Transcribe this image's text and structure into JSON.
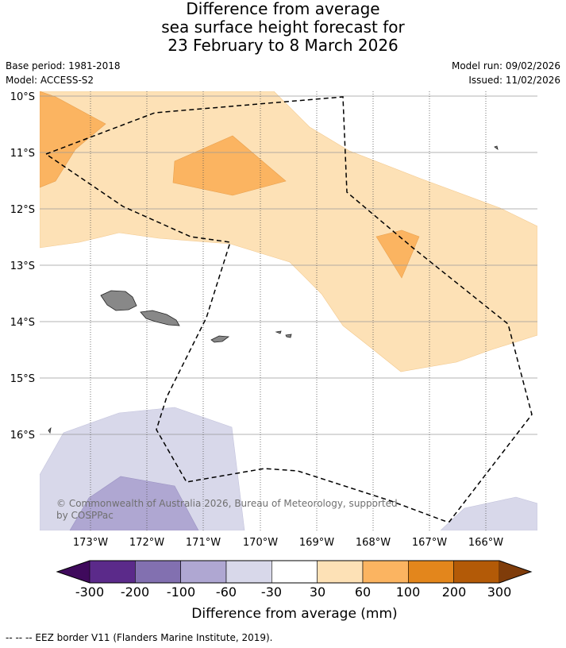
{
  "title": {
    "line1": "Difference from average",
    "line2": "sea surface height forecast for",
    "line3": "23 February to 8 March 2026"
  },
  "meta": {
    "base_period": "Base period: 1981-2018",
    "model": "Model: ACCESS-S2",
    "model_run": "Model run: 09/02/2026",
    "issued": "Issued: 11/02/2026"
  },
  "map": {
    "lat_labels": [
      "10°S",
      "11°S",
      "12°S",
      "13°S",
      "14°S",
      "15°S",
      "16°S"
    ],
    "lon_labels": [
      "173°W",
      "172°W",
      "171°W",
      "170°W",
      "169°W",
      "168°W",
      "167°W",
      "166°W"
    ],
    "copyright": {
      "line1": "© Commonwealth of Australia 2026, Bureau of Meteorology, supported",
      "line2": "by COSPPac"
    }
  },
  "colorbar": {
    "ticks": [
      "-300",
      "-200",
      "-100",
      "-60",
      "-30",
      "30",
      "60",
      "100",
      "200",
      "300"
    ],
    "colors": [
      "#3f0a5c",
      "#5b2a8a",
      "#8270b0",
      "#afa7d2",
      "#d8d8ea",
      "#ffffff",
      "#fde1b6",
      "#fbb461",
      "#e3861c",
      "#b35a07",
      "#7f3c0a"
    ],
    "label": "Difference from average (mm)"
  },
  "footer": "--  --  -- EEZ border V11 (Flanders Marine Institute, 2019).",
  "colors": {
    "light_orange": "#fde1b6",
    "mid_orange": "#fbb461",
    "light_purple": "#d8d8ea",
    "mid_purple": "#afa7d2",
    "land": "#888888"
  }
}
